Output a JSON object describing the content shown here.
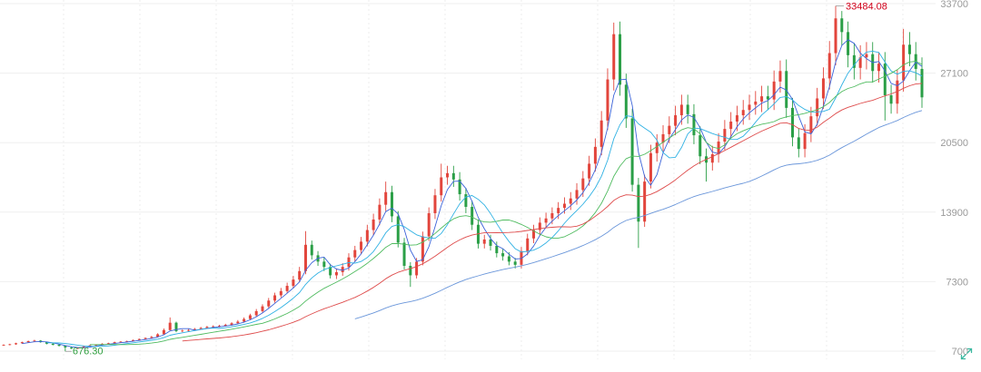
{
  "chart_data": {
    "type": "candlestick",
    "title": "",
    "xlabel": "",
    "ylabel": "",
    "ylim": [
      700,
      33700
    ],
    "yticks": [
      700,
      7300,
      13900,
      20500,
      27100,
      33700
    ],
    "grid": true,
    "colors": {
      "up": "#e2453c",
      "down": "#2b9f47",
      "max_label": "#d0021b",
      "min_label": "#2e9e3e",
      "expand_icon": "#3bb8a0"
    },
    "line_colors": [
      "#3b63d9",
      "#2fb1e3",
      "#4fbb5f",
      "#de4b4b",
      "#6a96da"
    ],
    "annotations": {
      "max_label": "33484.08",
      "min_label": "676.30"
    },
    "candle_fields": [
      "open",
      "high",
      "low",
      "close"
    ],
    "candles": [
      [
        1250,
        1350,
        1200,
        1300
      ],
      [
        1300,
        1400,
        1250,
        1350
      ],
      [
        1350,
        1500,
        1300,
        1450
      ],
      [
        1450,
        1600,
        1400,
        1550
      ],
      [
        1550,
        1700,
        1500,
        1650
      ],
      [
        1650,
        1780,
        1600,
        1700
      ],
      [
        1700,
        1750,
        1500,
        1550
      ],
      [
        1550,
        1600,
        1350,
        1400
      ],
      [
        1400,
        1450,
        1250,
        1300
      ],
      [
        1300,
        1350,
        1150,
        1200
      ],
      [
        1200,
        1250,
        676.3,
        1050
      ],
      [
        1050,
        1100,
        900,
        950
      ],
      [
        950,
        1050,
        900,
        1000
      ],
      [
        1000,
        1200,
        950,
        1150
      ],
      [
        1150,
        1300,
        1100,
        1250
      ],
      [
        1250,
        1350,
        1200,
        1300
      ],
      [
        1300,
        1450,
        1250,
        1400
      ],
      [
        1400,
        1500,
        1350,
        1450
      ],
      [
        1450,
        1600,
        1400,
        1550
      ],
      [
        1550,
        1650,
        1500,
        1600
      ],
      [
        1600,
        1700,
        1550,
        1650
      ],
      [
        1650,
        1800,
        1600,
        1750
      ],
      [
        1750,
        1900,
        1700,
        1850
      ],
      [
        1850,
        2000,
        1800,
        1950
      ],
      [
        1950,
        2150,
        1900,
        2050
      ],
      [
        2050,
        2400,
        2000,
        2300
      ],
      [
        2300,
        2850,
        2250,
        2700
      ],
      [
        2700,
        3900,
        2650,
        3400
      ],
      [
        3400,
        3500,
        2500,
        2600
      ],
      [
        2600,
        2750,
        2500,
        2650
      ],
      [
        2650,
        2800,
        2550,
        2700
      ],
      [
        2700,
        2900,
        2650,
        2800
      ],
      [
        2800,
        3000,
        2750,
        2900
      ],
      [
        2900,
        3100,
        2850,
        3000
      ],
      [
        3000,
        3150,
        2900,
        3050
      ],
      [
        3050,
        3200,
        2950,
        3100
      ],
      [
        3100,
        3300,
        3050,
        3200
      ],
      [
        3200,
        3450,
        3100,
        3350
      ],
      [
        3350,
        3650,
        3250,
        3500
      ],
      [
        3500,
        3900,
        3400,
        3750
      ],
      [
        3750,
        4250,
        3650,
        4100
      ],
      [
        4100,
        4700,
        3950,
        4500
      ],
      [
        4500,
        5150,
        4350,
        4950
      ],
      [
        4950,
        5750,
        4800,
        5500
      ],
      [
        5500,
        6250,
        5300,
        6000
      ],
      [
        6000,
        6700,
        5800,
        6400
      ],
      [
        6400,
        7200,
        6200,
        6900
      ],
      [
        6900,
        7850,
        6650,
        7500
      ],
      [
        7500,
        8700,
        7250,
        8300
      ],
      [
        8300,
        12100,
        8000,
        10800
      ],
      [
        10800,
        11200,
        9400,
        9800
      ],
      [
        9800,
        10200,
        8800,
        9200
      ],
      [
        9200,
        9600,
        8300,
        8700
      ],
      [
        8700,
        9000,
        7600,
        7900
      ],
      [
        7900,
        8550,
        7550,
        8200
      ],
      [
        8200,
        9050,
        7850,
        8700
      ],
      [
        8700,
        10000,
        8350,
        9600
      ],
      [
        9600,
        10700,
        9200,
        10300
      ],
      [
        10300,
        11550,
        9900,
        11100
      ],
      [
        11100,
        12700,
        10650,
        12200
      ],
      [
        12200,
        13750,
        11700,
        13200
      ],
      [
        13200,
        15200,
        12650,
        14600
      ],
      [
        14600,
        16800,
        14000,
        15800
      ],
      [
        15800,
        16400,
        12950,
        13500
      ],
      [
        13500,
        14000,
        10550,
        11000
      ],
      [
        11000,
        11450,
        8450,
        8800
      ],
      [
        8800,
        9150,
        6800,
        7900
      ],
      [
        7900,
        9550,
        7600,
        9200
      ],
      [
        9200,
        12050,
        8850,
        11600
      ],
      [
        11600,
        14350,
        11150,
        13800
      ],
      [
        13800,
        16100,
        13250,
        15500
      ],
      [
        15500,
        18500,
        14900,
        17200
      ],
      [
        17200,
        18300,
        16500,
        17600
      ],
      [
        17600,
        18300,
        16300,
        17000
      ],
      [
        17000,
        17700,
        15000,
        15600
      ],
      [
        15600,
        16200,
        13800,
        14400
      ],
      [
        14400,
        15000,
        12200,
        12700
      ],
      [
        12700,
        13200,
        10450,
        10900
      ],
      [
        10900,
        11750,
        10450,
        11300
      ],
      [
        11300,
        11750,
        10250,
        10700
      ],
      [
        10700,
        11100,
        9600,
        10000
      ],
      [
        10000,
        10400,
        9300,
        9700
      ],
      [
        9700,
        10100,
        8850,
        9200
      ],
      [
        9200,
        9550,
        8550,
        8900
      ],
      [
        8900,
        10600,
        8550,
        10200
      ],
      [
        10200,
        11850,
        9800,
        11400
      ],
      [
        11400,
        12700,
        10950,
        12200
      ],
      [
        12200,
        13400,
        11700,
        12900
      ],
      [
        12900,
        13850,
        12400,
        13300
      ],
      [
        13300,
        14350,
        12750,
        13800
      ],
      [
        13800,
        14850,
        13250,
        14300
      ],
      [
        14300,
        15300,
        13750,
        14700
      ],
      [
        14700,
        15800,
        14100,
        15200
      ],
      [
        15200,
        16650,
        14600,
        16000
      ],
      [
        16000,
        17800,
        15350,
        17100
      ],
      [
        17100,
        19250,
        16400,
        18500
      ],
      [
        18500,
        20900,
        17750,
        20100
      ],
      [
        20100,
        23500,
        19300,
        22600
      ],
      [
        22600,
        27550,
        21700,
        26500
      ],
      [
        26500,
        31900,
        25450,
        30800
      ],
      [
        30800,
        32000,
        24950,
        26000
      ],
      [
        26000,
        27050,
        21900,
        22800
      ],
      [
        22800,
        23700,
        15850,
        16500
      ],
      [
        16500,
        17150,
        10500,
        13000
      ],
      [
        13000,
        17450,
        12500,
        16800
      ],
      [
        16800,
        20300,
        16150,
        19500
      ],
      [
        19500,
        21300,
        18700,
        20500
      ],
      [
        20500,
        22150,
        19700,
        21300
      ],
      [
        21300,
        23000,
        20450,
        22100
      ],
      [
        22100,
        24000,
        21200,
        23100
      ],
      [
        23100,
        25050,
        22200,
        24100
      ],
      [
        24100,
        25050,
        22300,
        23200
      ],
      [
        23200,
        24150,
        20350,
        21200
      ],
      [
        21200,
        22050,
        18450,
        19200
      ],
      [
        19200,
        19950,
        16800,
        18600
      ],
      [
        18600,
        20200,
        17850,
        19400
      ],
      [
        19400,
        21400,
        18600,
        20600
      ],
      [
        20600,
        22650,
        19800,
        21800
      ],
      [
        21800,
        23400,
        20950,
        22500
      ],
      [
        22500,
        24000,
        21600,
        23100
      ],
      [
        23100,
        24550,
        22200,
        23600
      ],
      [
        23600,
        25050,
        22650,
        24100
      ],
      [
        24100,
        25400,
        23150,
        24400
      ],
      [
        24400,
        25900,
        23400,
        24900
      ],
      [
        24900,
        25900,
        23600,
        24600
      ],
      [
        24600,
        27350,
        23600,
        26300
      ],
      [
        26300,
        28300,
        25250,
        27300
      ],
      [
        27300,
        28400,
        22850,
        23800
      ],
      [
        23800,
        24750,
        20150,
        21000
      ],
      [
        21000,
        21850,
        19100,
        19900
      ],
      [
        19900,
        22250,
        19100,
        21400
      ],
      [
        21400,
        23900,
        20550,
        23000
      ],
      [
        23000,
        25700,
        22100,
        24700
      ],
      [
        24700,
        27650,
        23700,
        26600
      ],
      [
        26600,
        30150,
        25550,
        29000
      ],
      [
        29000,
        33484.08,
        27850,
        32300
      ],
      [
        32300,
        33000,
        29750,
        31000
      ],
      [
        31000,
        32000,
        27650,
        28800
      ],
      [
        28800,
        29950,
        26500,
        27600
      ],
      [
        27600,
        29750,
        26500,
        28600
      ],
      [
        28600,
        30050,
        27450,
        28900
      ],
      [
        28900,
        30050,
        26200,
        27300
      ],
      [
        27300,
        29100,
        26200,
        28000
      ],
      [
        28000,
        29100,
        22600,
        25000
      ],
      [
        25000,
        26000,
        23250,
        24200
      ],
      [
        24200,
        27450,
        23250,
        26400
      ],
      [
        26400,
        31300,
        25350,
        29800
      ],
      [
        29800,
        31000,
        27750,
        28900
      ],
      [
        28900,
        30050,
        26400,
        27500
      ],
      [
        27500,
        28600,
        23800,
        24800
      ]
    ]
  },
  "toolbar": {
    "expand_icon": "expand-icon"
  }
}
